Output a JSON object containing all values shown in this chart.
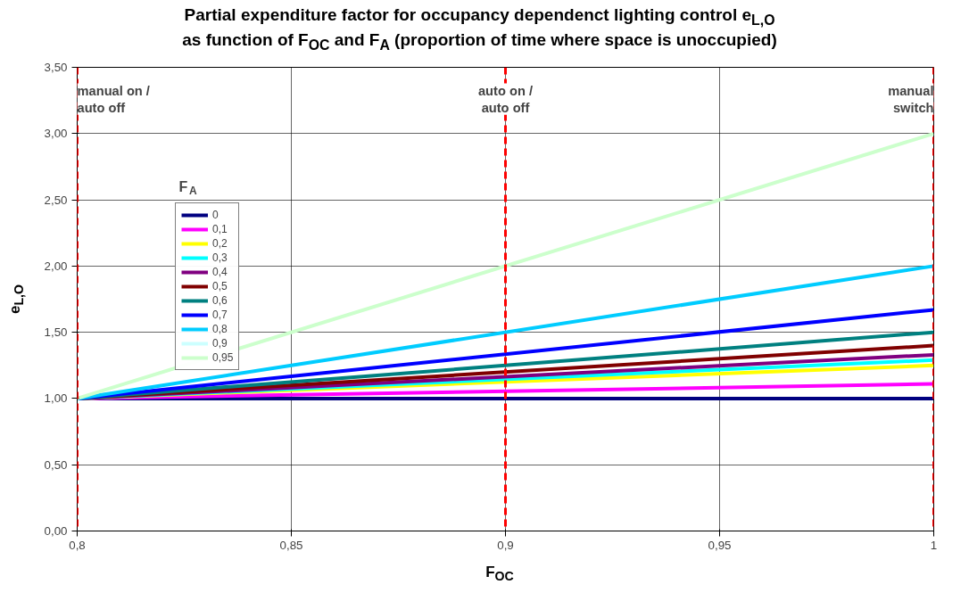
{
  "chart_data": {
    "type": "line",
    "title": "Partial expenditure factor for occupancy dependenct lighting control e$_{L,O}$",
    "subtitle": "as function of F$_{OC}$ and F$_{A}$ (proportion of time where space is unoccupied)",
    "xlabel": "F$_{OC}$",
    "ylabel": "e$_{L,O}$",
    "legend_title": "F$_{A}$",
    "x": [
      0.8,
      1
    ],
    "series": [
      {
        "name": "0",
        "color": "#000080",
        "values": [
          1.0,
          1.0
        ]
      },
      {
        "name": "0,1",
        "color": "#ff00ff",
        "values": [
          1.0,
          1.11
        ]
      },
      {
        "name": "0,2",
        "color": "#ffff00",
        "values": [
          1.0,
          1.25
        ]
      },
      {
        "name": "0,3",
        "color": "#00ffff",
        "values": [
          1.0,
          1.29
        ]
      },
      {
        "name": "0,4",
        "color": "#800080",
        "values": [
          1.0,
          1.33
        ]
      },
      {
        "name": "0,5",
        "color": "#800000",
        "values": [
          1.0,
          1.4
        ]
      },
      {
        "name": "0,6",
        "color": "#008080",
        "values": [
          1.0,
          1.5
        ]
      },
      {
        "name": "0,7",
        "color": "#0000ff",
        "values": [
          1.0,
          1.67
        ]
      },
      {
        "name": "0,8",
        "color": "#00ccff",
        "values": [
          1.0,
          2.0
        ]
      },
      {
        "name": "0,9",
        "color": "#ccffff",
        "values": [
          null,
          null
        ]
      },
      {
        "name": "0,95",
        "color": "#ccffcc",
        "values": [
          1.0,
          3.0
        ]
      }
    ],
    "xlim": [
      0.8,
      1
    ],
    "ylim": [
      0,
      3.5
    ],
    "xticks": [
      {
        "value": 0.8,
        "label": "0,8"
      },
      {
        "value": 0.85,
        "label": "0,85"
      },
      {
        "value": 0.9,
        "label": "0,9"
      },
      {
        "value": 0.95,
        "label": "0,95"
      },
      1
    ],
    "yticks": [
      {
        "value": 0,
        "label": "0,00"
      },
      {
        "value": 0.5,
        "label": "0,50"
      },
      {
        "value": 1,
        "label": "1,00"
      },
      {
        "value": 1.5,
        "label": "1,50"
      },
      {
        "value": 2,
        "label": "2,00"
      },
      {
        "value": 2.5,
        "label": "2,50"
      },
      {
        "value": 3,
        "label": "3,00"
      },
      {
        "value": 3.5,
        "label": "3,50"
      }
    ],
    "ref_lines": [
      {
        "axis": "x",
        "value": 0.8,
        "label": "manual on /\nauto off",
        "color": "#ff0000",
        "line_style": "dashed"
      },
      {
        "axis": "x",
        "value": 0.9,
        "label": "auto on /\nauto off",
        "color": "#ff0000",
        "line_style": "dashed"
      },
      {
        "axis": "x",
        "value": 1,
        "label": "manual\nswitch",
        "color": "#ff0000",
        "line_style": "dashed"
      }
    ],
    "grid": true,
    "legend": "top left",
    "line_style": "solid",
    "marker": "none"
  }
}
